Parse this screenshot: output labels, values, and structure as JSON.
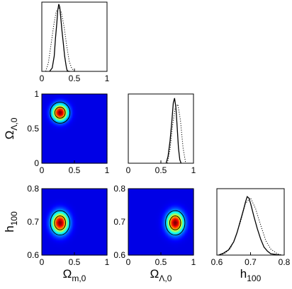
{
  "chart_data": [
    {
      "type": "line",
      "panel": "1D marginal",
      "xlabel": "",
      "ylabel": "",
      "xlim": [
        0,
        1
      ],
      "xticks": [
        "0",
        "0.5",
        "1"
      ],
      "series": [
        {
          "style": "solid",
          "x": [
            0.12,
            0.16,
            0.19,
            0.21,
            0.23,
            0.245,
            0.26,
            0.275,
            0.29,
            0.31,
            0.33,
            0.35,
            0.37,
            0.38,
            0.39,
            0.41,
            0.43
          ],
          "y": [
            0.0,
            0.05,
            0.22,
            0.48,
            0.7,
            0.88,
            0.97,
            0.93,
            0.78,
            0.58,
            0.4,
            0.22,
            0.1,
            0.04,
            0.01,
            0.0,
            0.0
          ]
        },
        {
          "style": "dotted",
          "x": [
            0.06,
            0.1,
            0.14,
            0.18,
            0.22,
            0.26,
            0.3,
            0.34,
            0.38,
            0.42,
            0.46,
            0.5
          ],
          "y": [
            0.0,
            0.12,
            0.38,
            0.65,
            0.86,
            0.92,
            0.85,
            0.65,
            0.38,
            0.15,
            0.04,
            0.0
          ]
        }
      ]
    },
    {
      "type": "line",
      "panel": "1D marginal",
      "xlabel": "",
      "ylabel": "",
      "xlim": [
        0,
        1
      ],
      "xticks": [
        "0",
        "0.5",
        "1"
      ],
      "series": [
        {
          "style": "solid",
          "x": [
            0.58,
            0.61,
            0.64,
            0.67,
            0.69,
            0.71,
            0.73,
            0.75,
            0.77,
            0.79,
            0.81
          ],
          "y": [
            0.0,
            0.1,
            0.32,
            0.62,
            0.87,
            0.94,
            0.8,
            0.52,
            0.22,
            0.05,
            0.0
          ]
        },
        {
          "style": "dotted",
          "x": [
            0.6,
            0.64,
            0.68,
            0.72,
            0.76,
            0.8,
            0.84,
            0.88
          ],
          "y": [
            0.0,
            0.2,
            0.55,
            0.8,
            0.85,
            0.62,
            0.22,
            0.0
          ]
        }
      ]
    },
    {
      "type": "line",
      "panel": "1D marginal",
      "xlabel": "h",
      "xlabel_sub": "100",
      "ylabel": "",
      "xlim": [
        0.6,
        0.8
      ],
      "xticks": [
        "0.6",
        "0.7",
        "0.8"
      ],
      "series": [
        {
          "style": "solid",
          "x": [
            0.605,
            0.62,
            0.635,
            0.65,
            0.66,
            0.67,
            0.68,
            0.685,
            0.69,
            0.695,
            0.7,
            0.71,
            0.72,
            0.73,
            0.74,
            0.75,
            0.76,
            0.775,
            0.79
          ],
          "y": [
            0.0,
            0.03,
            0.08,
            0.2,
            0.34,
            0.52,
            0.7,
            0.8,
            0.88,
            0.86,
            0.78,
            0.58,
            0.4,
            0.24,
            0.12,
            0.06,
            0.02,
            0.01,
            0.0
          ]
        },
        {
          "style": "dotted",
          "x": [
            0.61,
            0.625,
            0.64,
            0.655,
            0.67,
            0.685,
            0.7,
            0.715,
            0.73,
            0.745,
            0.76,
            0.78,
            0.795
          ],
          "y": [
            0.0,
            0.03,
            0.1,
            0.26,
            0.5,
            0.78,
            0.86,
            0.7,
            0.45,
            0.22,
            0.09,
            0.02,
            0.0
          ]
        }
      ]
    },
    {
      "type": "heatmap",
      "panel": "2D marginal",
      "xlabel": "",
      "ylabel": "Ω",
      "ylabel_sub": "Λ,0",
      "xlim": [
        0,
        1
      ],
      "ylim": [
        0,
        1
      ],
      "xticks": [
        "0",
        "0.5",
        "1"
      ],
      "yticks": [
        "0",
        "0.5",
        "1"
      ],
      "peak": {
        "x": 0.28,
        "y": 0.73,
        "sx": 0.08,
        "sy": 0.08
      },
      "contours": [
        1.0,
        1.9
      ]
    },
    {
      "type": "heatmap",
      "panel": "2D marginal",
      "xlabel": "Ω",
      "xlabel_sub": "m,0",
      "ylabel": "h",
      "ylabel_sub": "100",
      "xlim": [
        0,
        1
      ],
      "ylim": [
        0.6,
        0.8
      ],
      "xticks": [
        "0",
        "0.5",
        "1"
      ],
      "yticks": [
        "0.6",
        "0.7",
        "0.8"
      ],
      "peak": {
        "x": 0.28,
        "y": 0.697,
        "sx": 0.085,
        "sy": 0.021
      },
      "contours": [
        1.0,
        1.75
      ]
    },
    {
      "type": "heatmap",
      "panel": "2D marginal",
      "xlabel": "Ω",
      "xlabel_sub": "Λ,0",
      "ylabel": "",
      "xlim": [
        0,
        1
      ],
      "ylim": [
        0.6,
        0.8
      ],
      "xticks": [
        "0",
        "0.5",
        "1"
      ],
      "yticks": [
        "0.6",
        "0.7",
        "0.8"
      ],
      "peak": {
        "x": 0.72,
        "y": 0.697,
        "sx": 0.085,
        "sy": 0.021
      },
      "contours": [
        1.0,
        1.75
      ]
    }
  ]
}
